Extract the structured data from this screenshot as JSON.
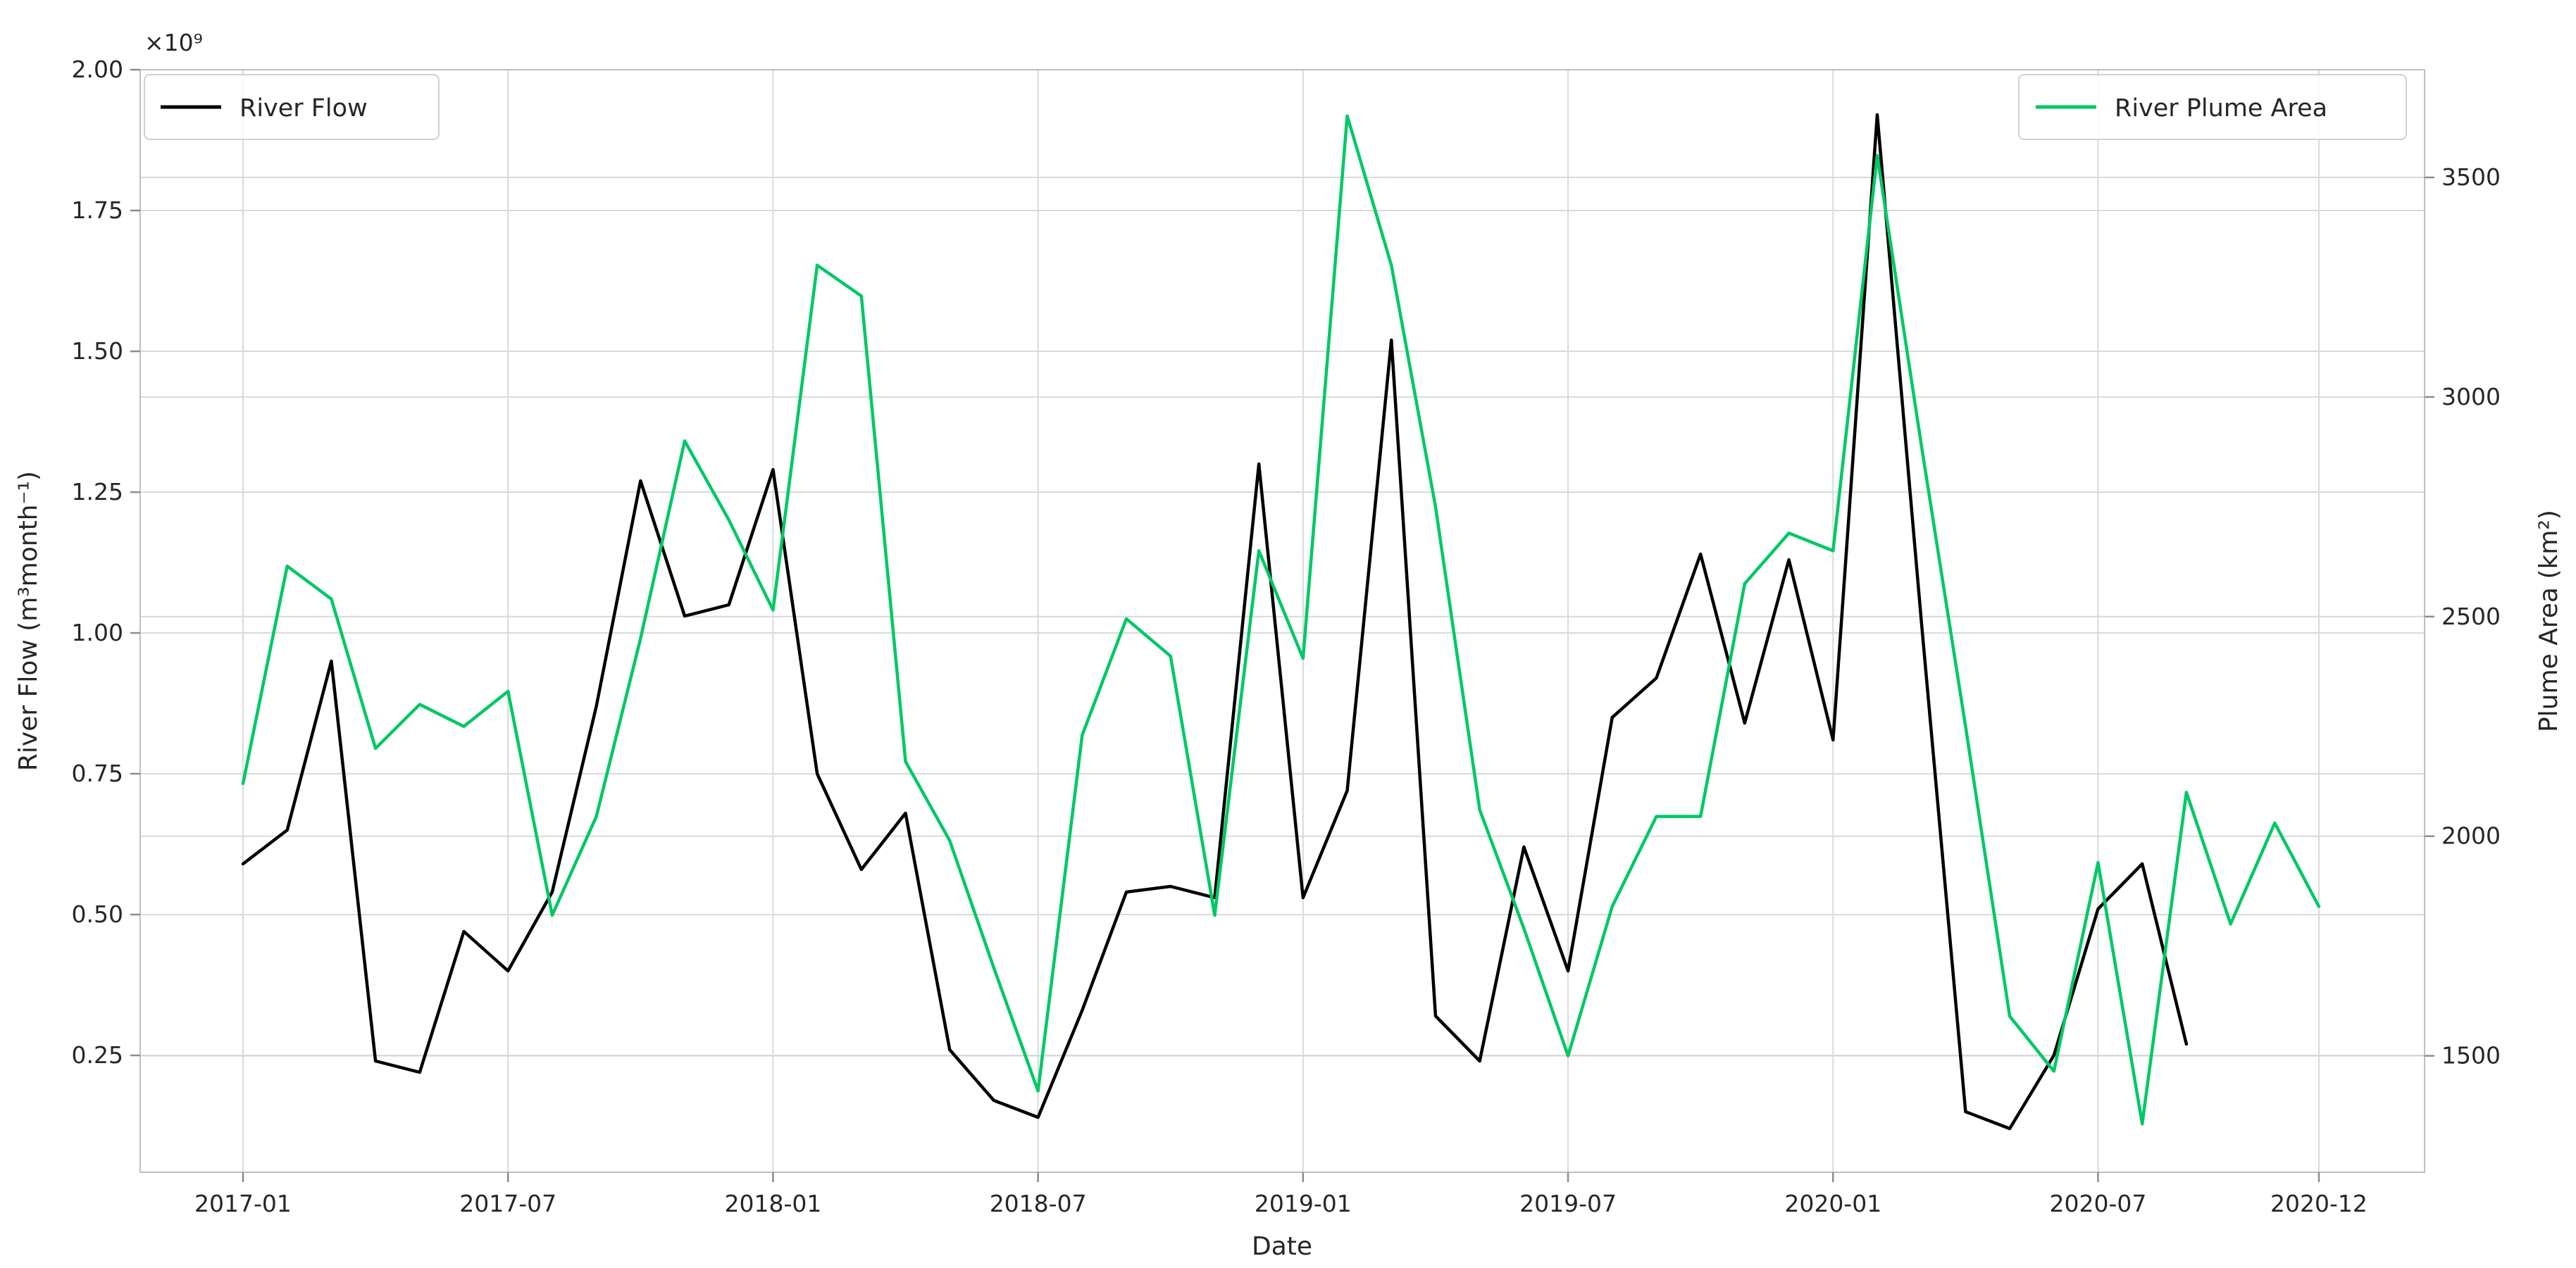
{
  "chart_data": {
    "type": "line",
    "title": "",
    "xlabel": "Date",
    "ylabel_left": "River Flow (m³month⁻¹)",
    "ylabel_left_offset": "×10⁹",
    "ylabel_right": "Plume Area (km²)",
    "grid": true,
    "legend_left_label": "River Flow",
    "legend_right_label": "River Plume Area",
    "colors": {
      "river_flow": "#000000",
      "plume_area": "#00c866",
      "grid": "#d9d9d9",
      "spine": "#bfbfbf",
      "text": "#262626"
    },
    "x_months": [
      "2017-01",
      "2017-02",
      "2017-03",
      "2017-04",
      "2017-05",
      "2017-06",
      "2017-07",
      "2017-08",
      "2017-09",
      "2017-10",
      "2017-11",
      "2017-12",
      "2018-01",
      "2018-02",
      "2018-03",
      "2018-04",
      "2018-05",
      "2018-06",
      "2018-07",
      "2018-08",
      "2018-09",
      "2018-10",
      "2018-11",
      "2018-12",
      "2019-01",
      "2019-02",
      "2019-03",
      "2019-04",
      "2019-05",
      "2019-06",
      "2019-07",
      "2019-08",
      "2019-09",
      "2019-10",
      "2019-11",
      "2019-12",
      "2020-01",
      "2020-02",
      "2020-03",
      "2020-04",
      "2020-05",
      "2020-06",
      "2020-07",
      "2020-08",
      "2020-09",
      "2020-10",
      "2020-11",
      "2020-12"
    ],
    "xticks": [
      {
        "label": "2017-01",
        "month": 0
      },
      {
        "label": "2017-07",
        "month": 6
      },
      {
        "label": "2018-01",
        "month": 12
      },
      {
        "label": "2018-07",
        "month": 18
      },
      {
        "label": "2019-01",
        "month": 24
      },
      {
        "label": "2019-07",
        "month": 30
      },
      {
        "label": "2020-01",
        "month": 36
      },
      {
        "label": "2020-07",
        "month": 42
      },
      {
        "label": "2020-12",
        "month": 47
      }
    ],
    "yticks_left": [
      {
        "label": "2.00",
        "value": 2.0
      },
      {
        "label": "1.75",
        "value": 1.75
      },
      {
        "label": "1.50",
        "value": 1.5
      },
      {
        "label": "1.25",
        "value": 1.25
      },
      {
        "label": "1.00",
        "value": 1.0
      },
      {
        "label": "0.75",
        "value": 0.75
      },
      {
        "label": "0.50",
        "value": 0.5
      },
      {
        "label": "0.25",
        "value": 0.25
      }
    ],
    "yticks_right": [
      {
        "label": "3500",
        "value": 3500
      },
      {
        "label": "3000",
        "value": 3000
      },
      {
        "label": "2500",
        "value": 2500
      },
      {
        "label": "2000",
        "value": 2000
      },
      {
        "label": "1500",
        "value": 1500
      }
    ],
    "ylim_left": [
      0.04,
      2.0
    ],
    "ylim_right": [
      1236,
      3745
    ],
    "series": [
      {
        "name": "River Flow",
        "axis": "left",
        "units": "1e9 m3/month",
        "values": [
          0.59,
          0.65,
          0.95,
          0.24,
          0.22,
          0.47,
          0.4,
          0.54,
          0.87,
          1.27,
          1.03,
          1.05,
          1.29,
          0.75,
          0.58,
          0.68,
          0.26,
          0.17,
          0.14,
          0.33,
          0.54,
          0.55,
          0.53,
          1.3,
          0.53,
          0.72,
          1.52,
          0.32,
          0.24,
          0.62,
          0.4,
          0.85,
          0.92,
          1.14,
          0.84,
          1.13,
          0.81,
          1.92,
          1.02,
          0.15,
          0.12,
          0.25,
          0.51,
          0.59,
          0.27,
          null,
          null,
          null
        ]
      },
      {
        "name": "River Plume Area",
        "axis": "right",
        "units": "km2",
        "values": [
          2120,
          2615,
          2540,
          2200,
          2300,
          2250,
          2330,
          1820,
          2045,
          2450,
          2900,
          2720,
          2515,
          3300,
          3230,
          2170,
          1990,
          1700,
          1420,
          2230,
          2495,
          2410,
          1820,
          2650,
          2405,
          3640,
          3300,
          2750,
          2060,
          1790,
          1500,
          1840,
          2045,
          2045,
          2575,
          2690,
          2650,
          3550,
          2890,
          2250,
          1590,
          1465,
          1940,
          1345,
          2100,
          1800,
          2030,
          1840
        ]
      }
    ],
    "legend_position": {
      "left": "upper left",
      "right": "upper right"
    }
  }
}
